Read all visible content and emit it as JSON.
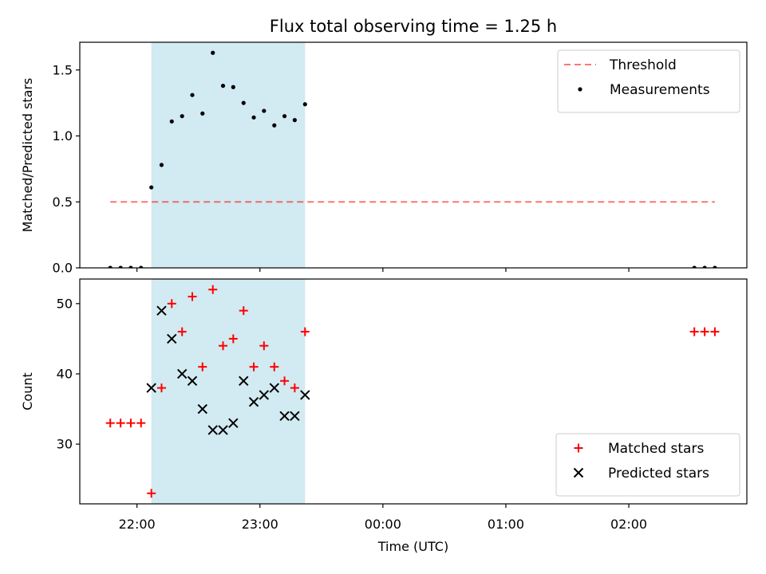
{
  "chart_data": {
    "title": "Flux total observing time = 1.25 h",
    "xlabel": "Time (UTC)",
    "x_ticks": [
      "22:00",
      "23:00",
      "00:00",
      "01:00",
      "02:00"
    ],
    "x_tick_hours": [
      0,
      1,
      2,
      3,
      4
    ],
    "xlim_hours_after_2200": [
      -0.465,
      4.96
    ],
    "shaded_span_hours_after_2200": [
      0.117,
      1.367
    ],
    "colors": {
      "span": "#add8e6",
      "threshold": "#ff0000",
      "measurements": "#000000",
      "matched": "#ff0000",
      "predicted": "#000000"
    },
    "panels": [
      {
        "type": "scatter",
        "ylabel": "Matched/Predicted stars",
        "ylim": [
          0,
          1.71
        ],
        "y_ticks": [
          0.0,
          0.5,
          1.0,
          1.5
        ],
        "y_tick_labels": [
          "0.0",
          "0.5",
          "1.0",
          "1.5"
        ],
        "legend_position": "top-right",
        "threshold": {
          "name": "Threshold",
          "value": 0.5,
          "x_range_hours": [
            -0.217,
            4.7
          ]
        },
        "series": [
          {
            "name": "Measurements",
            "marker": "dot",
            "points": [
              [
                -0.217,
                0
              ],
              [
                -0.133,
                0
              ],
              [
                -0.05,
                0
              ],
              [
                0.033,
                0
              ],
              [
                0.117,
                0.61
              ],
              [
                0.2,
                0.78
              ],
              [
                0.283,
                1.11
              ],
              [
                0.367,
                1.15
              ],
              [
                0.45,
                1.31
              ],
              [
                0.533,
                1.17
              ],
              [
                0.617,
                1.63
              ],
              [
                0.7,
                1.38
              ],
              [
                0.783,
                1.37
              ],
              [
                0.867,
                1.25
              ],
              [
                0.95,
                1.14
              ],
              [
                1.033,
                1.19
              ],
              [
                1.117,
                1.08
              ],
              [
                1.2,
                1.15
              ],
              [
                1.283,
                1.12
              ],
              [
                1.367,
                1.24
              ],
              [
                4.533,
                0
              ],
              [
                4.617,
                0
              ],
              [
                4.7,
                0
              ]
            ]
          }
        ]
      },
      {
        "type": "scatter",
        "ylabel": "Count",
        "ylim": [
          21.5,
          53.5
        ],
        "y_ticks": [
          30,
          40,
          50
        ],
        "y_tick_labels": [
          "30",
          "40",
          "50"
        ],
        "legend_position": "bottom-right",
        "series": [
          {
            "name": "Matched stars",
            "marker": "plus",
            "points": [
              [
                -0.217,
                33
              ],
              [
                -0.133,
                33
              ],
              [
                -0.05,
                33
              ],
              [
                0.033,
                33
              ],
              [
                0.117,
                23
              ],
              [
                0.2,
                38
              ],
              [
                0.283,
                50
              ],
              [
                0.367,
                46
              ],
              [
                0.45,
                51
              ],
              [
                0.533,
                41
              ],
              [
                0.617,
                52
              ],
              [
                0.7,
                44
              ],
              [
                0.783,
                45
              ],
              [
                0.867,
                49
              ],
              [
                0.95,
                41
              ],
              [
                1.033,
                44
              ],
              [
                1.117,
                41
              ],
              [
                1.2,
                39
              ],
              [
                1.283,
                38
              ],
              [
                1.367,
                46
              ],
              [
                4.533,
                46
              ],
              [
                4.617,
                46
              ],
              [
                4.7,
                46
              ]
            ]
          },
          {
            "name": "Predicted stars",
            "marker": "x",
            "points": [
              [
                0.117,
                38
              ],
              [
                0.2,
                49
              ],
              [
                0.283,
                45
              ],
              [
                0.367,
                40
              ],
              [
                0.45,
                39
              ],
              [
                0.533,
                35
              ],
              [
                0.617,
                32
              ],
              [
                0.7,
                32
              ],
              [
                0.783,
                33
              ],
              [
                0.867,
                39
              ],
              [
                0.95,
                36
              ],
              [
                1.033,
                37
              ],
              [
                1.117,
                38
              ],
              [
                1.2,
                34
              ],
              [
                1.283,
                34
              ],
              [
                1.367,
                37
              ]
            ]
          }
        ]
      }
    ]
  }
}
